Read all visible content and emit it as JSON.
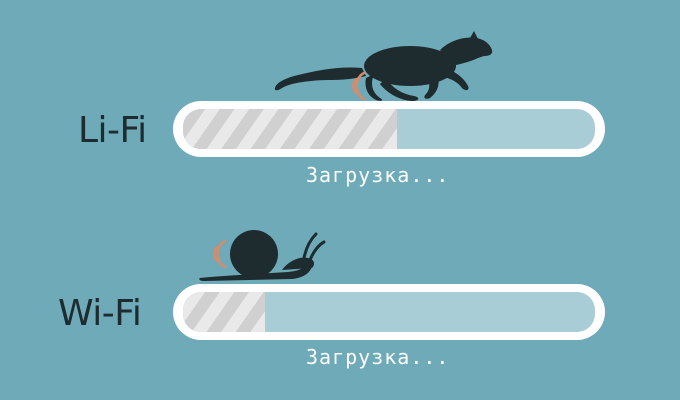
{
  "colors": {
    "background": "#6eaab8",
    "bar_frame": "#ffffff",
    "track": "#a8cdd6",
    "stripe_light": "#e9e9e9",
    "stripe_dark": "#d0d0d0",
    "label_text": "#1e2b2f",
    "loading_text": "#ffffff",
    "signal_waves": "#d98a6a",
    "silhouette": "#1e2b2f"
  },
  "rows": [
    {
      "label": "Li-Fi",
      "loading_text": "Загрузка...",
      "progress": 0.52,
      "icon": "cheetah-running-icon",
      "signal_icon": "signal-waves-icon"
    },
    {
      "label": "Wi-Fi",
      "loading_text": "Загрузка...",
      "progress": 0.2,
      "icon": "snail-icon",
      "signal_icon": "signal-waves-icon"
    }
  ]
}
